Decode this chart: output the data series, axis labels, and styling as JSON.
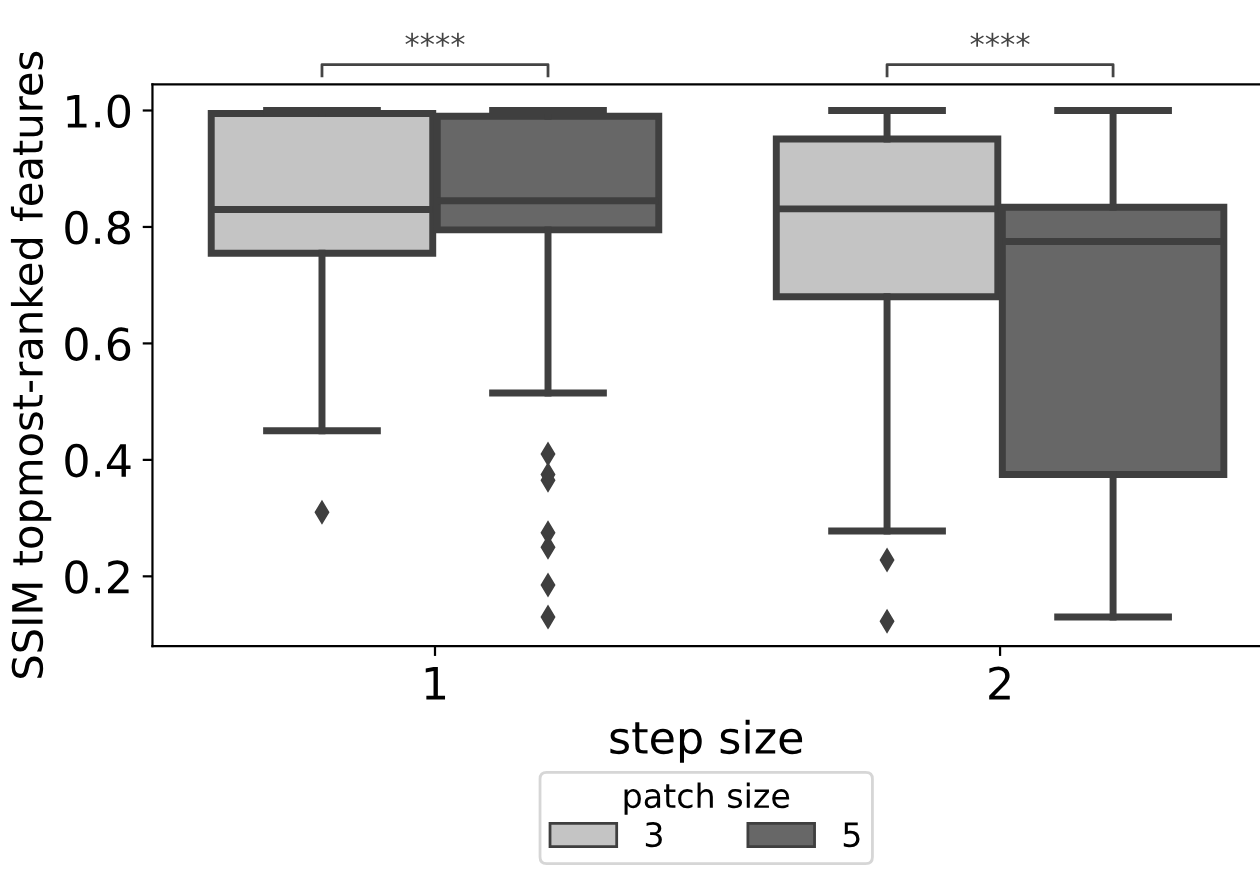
{
  "chart_data": {
    "type": "box",
    "xlabel": "step size",
    "ylabel": "SSIM topmost-ranked features",
    "legend_title": "patch size",
    "categories": [
      "1",
      "2"
    ],
    "series": [
      {
        "name": "3",
        "color": "#c4c4c4",
        "boxes": [
          {
            "low": 0.45,
            "q1": 0.755,
            "median": 0.83,
            "q3": 0.995,
            "high": 1.0,
            "outliers": [
              0.31
            ]
          },
          {
            "low": 0.278,
            "q1": 0.68,
            "median": 0.831,
            "q3": 0.951,
            "high": 1.0,
            "outliers": [
              0.228,
              0.123
            ]
          }
        ]
      },
      {
        "name": "5",
        "color": "#676767",
        "boxes": [
          {
            "low": 0.515,
            "q1": 0.795,
            "median": 0.845,
            "q3": 0.99,
            "high": 1.0,
            "outliers": [
              0.41,
              0.375,
              0.365,
              0.275,
              0.25,
              0.185,
              0.13
            ]
          },
          {
            "low": 0.13,
            "q1": 0.375,
            "median": 0.775,
            "q3": 0.834,
            "high": 1.0
          }
        ]
      }
    ],
    "annotations": [
      "****",
      "****"
    ],
    "ylim": [
      0.08,
      1.045
    ],
    "yticks": [
      0.2,
      0.4,
      0.6,
      0.8,
      {
        "value": 1.0,
        "label": "1.0"
      }
    ],
    "grid": false,
    "legend": "bottom",
    "marker": "diamond"
  }
}
